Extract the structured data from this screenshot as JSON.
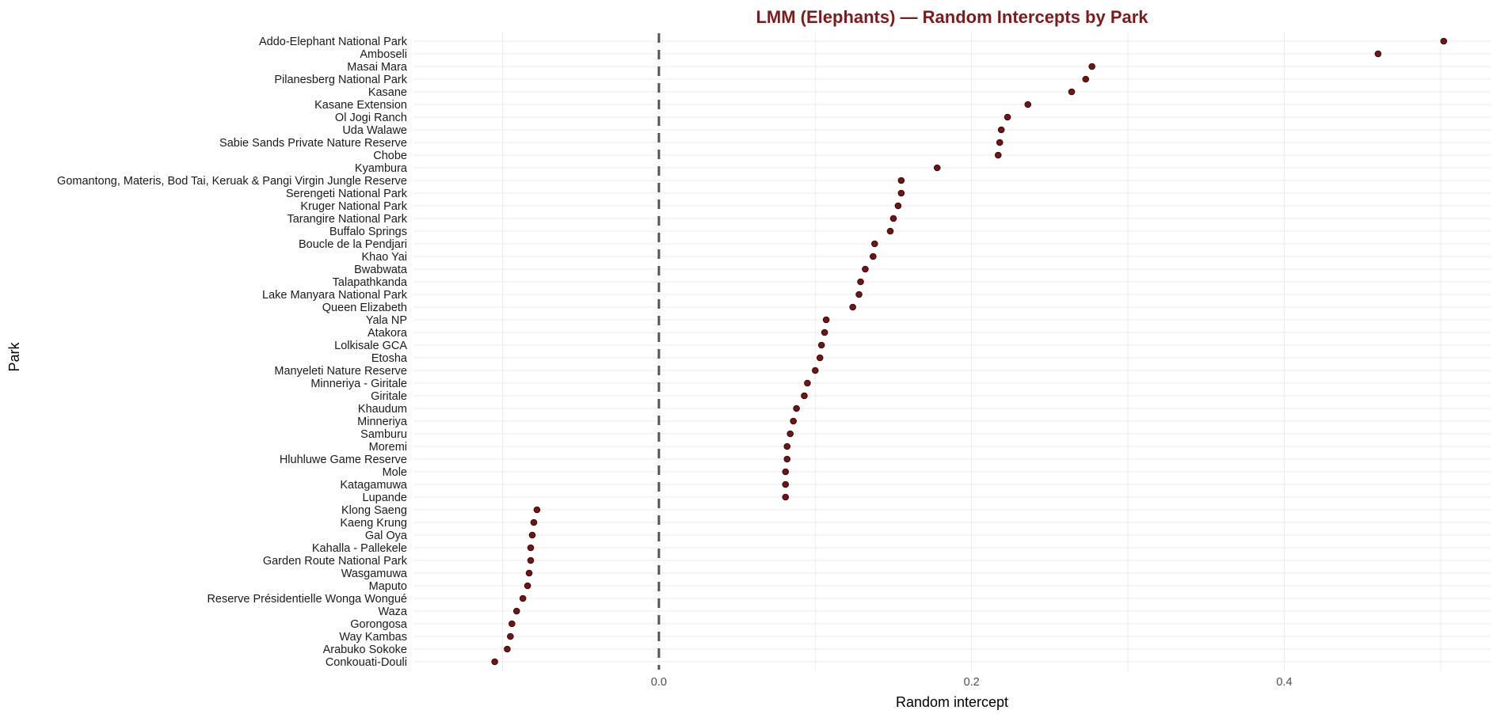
{
  "chart_data": {
    "type": "scatter",
    "title": "LMM (Elephants) — Random Intercepts by Park",
    "xlabel": "Random intercept",
    "ylabel": "Park",
    "xlim": [
      -0.157,
      0.532
    ],
    "xticks": [
      0.0,
      0.2,
      0.4
    ],
    "xtick_labels": [
      "0.0",
      "0.2",
      "0.4"
    ],
    "reference_line": {
      "x": 0.0,
      "style": "dashed"
    },
    "grid": true,
    "legend": "none",
    "colors": {
      "point": "#6e1515",
      "title": "#7b1c1c"
    },
    "categories": [
      "Addo-Elephant National Park",
      "Amboseli",
      "Masai Mara",
      "Pilanesberg National Park",
      "Kasane",
      "Kasane Extension",
      "Ol Jogi Ranch",
      "Uda Walawe",
      "Sabie Sands Private Nature Reserve",
      "Chobe",
      "Kyambura",
      "Gomantong, Materis, Bod Tai, Keruak & Pangi Virgin Jungle Reserve",
      "Serengeti National Park",
      "Kruger National Park",
      "Tarangire National Park",
      "Buffalo Springs",
      "Boucle de la Pendjari",
      "Khao Yai",
      "Bwabwata",
      "Talapathkanda",
      "Lake Manyara National Park",
      "Queen Elizabeth",
      "Yala NP",
      "Atakora",
      "Lolkisale GCA",
      "Etosha",
      "Manyeleti Nature Reserve",
      "Minneriya - Giritale",
      "Giritale",
      "Khaudum",
      "Minneriya",
      "Samburu",
      "Moremi",
      "Hluhluwe Game Reserve",
      "Mole",
      "Katagamuwa",
      "Lupande",
      "Klong Saeng",
      "Kaeng Krung",
      "Gal Oya",
      "Kahalla - Pallekele",
      "Garden Route National Park",
      "Wasgamuwa",
      "Maputo",
      "Reserve Présidentielle Wonga Wongué",
      "Waza",
      "Gorongosa",
      "Way Kambas",
      "Arabuko Sokoke",
      "Conkouati-Douli"
    ],
    "values": [
      0.502,
      0.46,
      0.277,
      0.273,
      0.264,
      0.236,
      0.223,
      0.219,
      0.218,
      0.217,
      0.178,
      0.155,
      0.155,
      0.153,
      0.15,
      0.148,
      0.138,
      0.137,
      0.132,
      0.129,
      0.128,
      0.124,
      0.107,
      0.106,
      0.104,
      0.103,
      0.1,
      0.095,
      0.093,
      0.088,
      0.086,
      0.084,
      0.082,
      0.082,
      0.081,
      0.081,
      0.081,
      -0.078,
      -0.08,
      -0.081,
      -0.082,
      -0.082,
      -0.083,
      -0.084,
      -0.087,
      -0.091,
      -0.094,
      -0.095,
      -0.097,
      -0.105
    ]
  }
}
